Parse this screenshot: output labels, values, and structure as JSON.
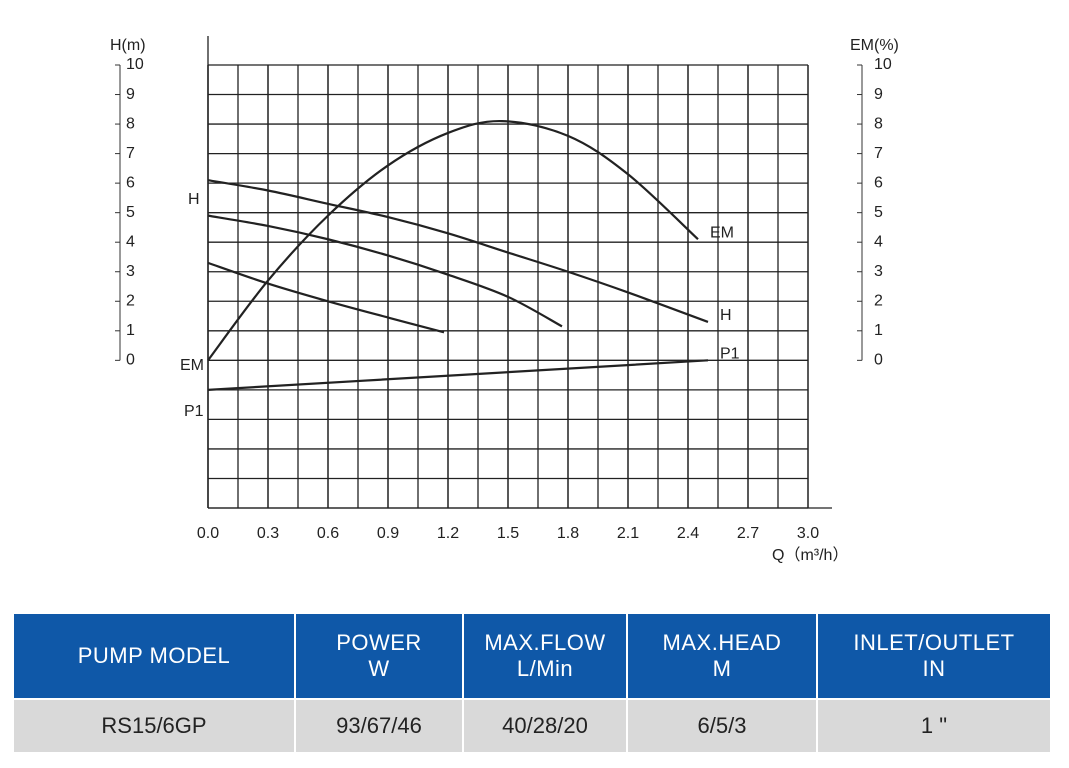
{
  "chart_data": {
    "type": "line",
    "ylabel": "H(m)",
    "y2label": "EM(%)",
    "xlabel": "Q（m³/h）",
    "xlim": [
      0,
      3
    ],
    "xticks": [
      {
        "value": 0,
        "label": "0.0"
      },
      0.3,
      0.6,
      0.9,
      1.2,
      1.5,
      1.8,
      2.1,
      2.4,
      2.7,
      {
        "value": 3,
        "label": "3.0"
      }
    ],
    "ylim": [
      -5,
      10
    ],
    "yticks": [
      0,
      1,
      2,
      3,
      4,
      5,
      6,
      7,
      8,
      9,
      10
    ],
    "y2lim": [
      -5,
      10
    ],
    "y2ticks": [
      0,
      1,
      2,
      3,
      4,
      5,
      6,
      7,
      8,
      9,
      10
    ],
    "grid": true,
    "annotations": [
      "H",
      "EM",
      "P1"
    ],
    "series": [
      {
        "name": "H",
        "color": "#222222",
        "x": [
          0,
          0.3,
          0.6,
          0.9,
          1.2,
          1.5,
          1.8,
          2.1,
          2.5
        ],
        "values": [
          6.1,
          5.75,
          5.3,
          4.85,
          4.3,
          3.65,
          3.0,
          2.3,
          1.3
        ]
      },
      {
        "color": "#222222",
        "x": [
          0,
          0.3,
          0.6,
          0.9,
          1.2,
          1.5,
          1.77
        ],
        "values": [
          4.9,
          4.55,
          4.1,
          3.55,
          2.9,
          2.15,
          1.15
        ]
      },
      {
        "color": "#222222",
        "x": [
          0,
          0.3,
          0.6,
          0.9,
          1.18
        ],
        "values": [
          3.3,
          2.6,
          2.0,
          1.45,
          0.95
        ]
      },
      {
        "name": "EM",
        "color": "#222222",
        "axis": "y2",
        "x": [
          0,
          0.3,
          0.6,
          0.9,
          1.2,
          1.47,
          1.8,
          2.1,
          2.45
        ],
        "values": [
          0,
          2.7,
          4.9,
          6.6,
          7.7,
          8.1,
          7.6,
          6.3,
          4.1
        ]
      },
      {
        "name": "P1",
        "color": "#222222",
        "x": [
          0,
          2.5
        ],
        "values": [
          -1,
          0
        ]
      }
    ]
  },
  "table": {
    "headers": [
      [
        "PUMP MODEL"
      ],
      [
        "POWER",
        "W"
      ],
      [
        "MAX.FLOW",
        "L/Min"
      ],
      [
        "MAX.HEAD",
        "M"
      ],
      [
        "INLET/OUTLET",
        "IN"
      ]
    ],
    "rows": [
      [
        "RS15/6GP",
        "93/67/46",
        "40/28/20",
        "6/5/3",
        "1 \""
      ]
    ]
  }
}
